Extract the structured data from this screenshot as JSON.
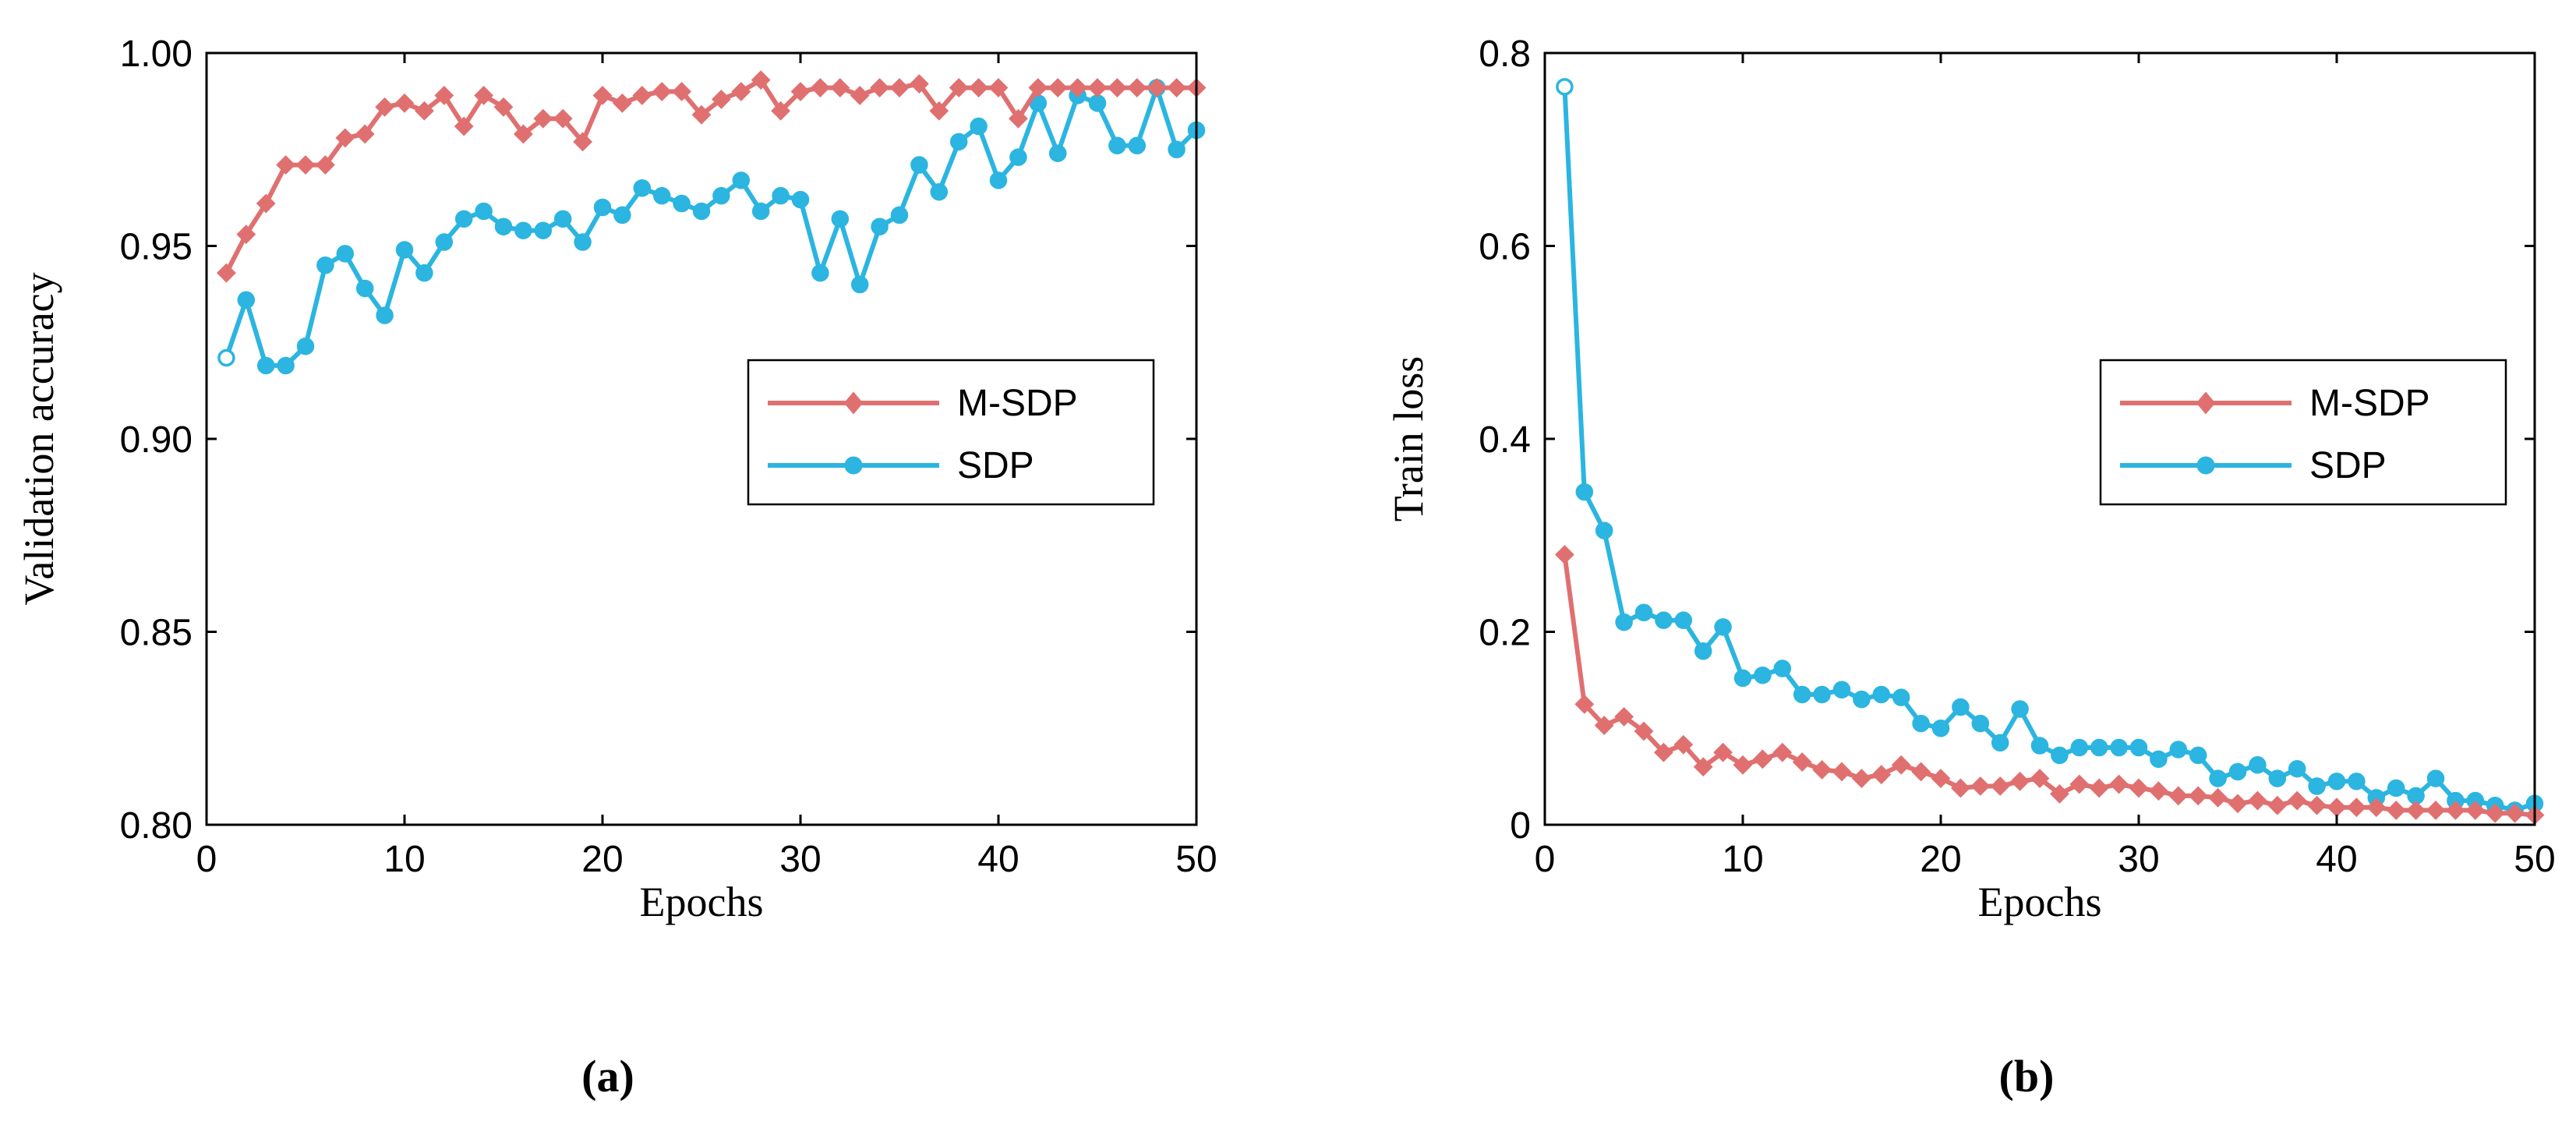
{
  "colors": {
    "m_sdp": "#E07070",
    "sdp": "#2BB5E0",
    "axis": "#000000",
    "background": "#ffffff"
  },
  "chart_data": [
    {
      "type": "line",
      "panel_label": "(a)",
      "title": "",
      "xlabel": "Epochs",
      "ylabel": "Validation accuracy",
      "xlim": [
        0,
        50
      ],
      "ylim": [
        0.8,
        1.0
      ],
      "xticks": [
        0,
        10,
        20,
        30,
        40,
        50
      ],
      "xtick_labels": [
        "0",
        "10",
        "20",
        "30",
        "40",
        "50"
      ],
      "yticks": [
        0.8,
        0.85,
        0.9,
        0.95,
        1.0
      ],
      "ytick_labels": [
        "0.80",
        "0.85",
        "0.90",
        "0.95",
        "1.00"
      ],
      "grid": false,
      "legend_position": "middle-right",
      "x": [
        1,
        2,
        3,
        4,
        5,
        6,
        7,
        8,
        9,
        10,
        11,
        12,
        13,
        14,
        15,
        16,
        17,
        18,
        19,
        20,
        21,
        22,
        23,
        24,
        25,
        26,
        27,
        28,
        29,
        30,
        31,
        32,
        33,
        34,
        35,
        36,
        37,
        38,
        39,
        40,
        41,
        42,
        43,
        44,
        45,
        46,
        47,
        48,
        49,
        50
      ],
      "series": [
        {
          "name": "M-SDP",
          "marker": "diamond",
          "color_key": "m_sdp",
          "values": [
            0.943,
            0.953,
            0.961,
            0.971,
            0.971,
            0.971,
            0.978,
            0.979,
            0.986,
            0.987,
            0.985,
            0.989,
            0.981,
            0.989,
            0.986,
            0.979,
            0.983,
            0.983,
            0.977,
            0.989,
            0.987,
            0.989,
            0.99,
            0.99,
            0.984,
            0.988,
            0.99,
            0.993,
            0.985,
            0.99,
            0.991,
            0.991,
            0.989,
            0.991,
            0.991,
            0.992,
            0.985,
            0.991,
            0.991,
            0.991,
            0.983,
            0.991,
            0.991,
            0.991,
            0.991,
            0.991,
            0.991,
            0.991,
            0.991,
            0.991
          ]
        },
        {
          "name": "SDP",
          "marker": "circle",
          "color_key": "sdp",
          "values": [
            0.921,
            0.936,
            0.919,
            0.919,
            0.924,
            0.945,
            0.948,
            0.939,
            0.932,
            0.949,
            0.943,
            0.951,
            0.957,
            0.959,
            0.955,
            0.954,
            0.954,
            0.957,
            0.951,
            0.96,
            0.958,
            0.965,
            0.963,
            0.961,
            0.959,
            0.963,
            0.967,
            0.959,
            0.963,
            0.962,
            0.943,
            0.957,
            0.94,
            0.955,
            0.958,
            0.971,
            0.964,
            0.977,
            0.981,
            0.967,
            0.973,
            0.987,
            0.974,
            0.989,
            0.987,
            0.976,
            0.976,
            0.991,
            0.975,
            0.98
          ]
        }
      ]
    },
    {
      "type": "line",
      "panel_label": "(b)",
      "title": "",
      "xlabel": "Epochs",
      "ylabel": "Train loss",
      "xlim": [
        0,
        50
      ],
      "ylim": [
        0,
        0.8
      ],
      "xticks": [
        0,
        10,
        20,
        30,
        40,
        50
      ],
      "xtick_labels": [
        "0",
        "10",
        "20",
        "30",
        "40",
        "50"
      ],
      "yticks": [
        0,
        0.2,
        0.4,
        0.6,
        0.8
      ],
      "ytick_labels": [
        "0",
        "0.2",
        "0.4",
        "0.6",
        "0.8"
      ],
      "grid": false,
      "legend_position": "middle-right",
      "x": [
        1,
        2,
        3,
        4,
        5,
        6,
        7,
        8,
        9,
        10,
        11,
        12,
        13,
        14,
        15,
        16,
        17,
        18,
        19,
        20,
        21,
        22,
        23,
        24,
        25,
        26,
        27,
        28,
        29,
        30,
        31,
        32,
        33,
        34,
        35,
        36,
        37,
        38,
        39,
        40,
        41,
        42,
        43,
        44,
        45,
        46,
        47,
        48,
        49,
        50
      ],
      "series": [
        {
          "name": "M-SDP",
          "marker": "diamond",
          "color_key": "m_sdp",
          "values": [
            0.28,
            0.125,
            0.103,
            0.112,
            0.097,
            0.075,
            0.083,
            0.06,
            0.075,
            0.062,
            0.068,
            0.075,
            0.065,
            0.057,
            0.055,
            0.048,
            0.052,
            0.062,
            0.055,
            0.048,
            0.038,
            0.04,
            0.04,
            0.045,
            0.048,
            0.032,
            0.042,
            0.038,
            0.042,
            0.038,
            0.035,
            0.03,
            0.03,
            0.028,
            0.022,
            0.025,
            0.02,
            0.025,
            0.02,
            0.018,
            0.018,
            0.018,
            0.015,
            0.015,
            0.015,
            0.015,
            0.015,
            0.012,
            0.012,
            0.01
          ]
        },
        {
          "name": "SDP",
          "marker": "circle",
          "color_key": "sdp",
          "values": [
            0.765,
            0.345,
            0.305,
            0.21,
            0.22,
            0.212,
            0.212,
            0.18,
            0.205,
            0.152,
            0.155,
            0.162,
            0.135,
            0.135,
            0.14,
            0.13,
            0.135,
            0.132,
            0.105,
            0.1,
            0.122,
            0.105,
            0.085,
            0.12,
            0.082,
            0.072,
            0.08,
            0.08,
            0.08,
            0.08,
            0.068,
            0.078,
            0.072,
            0.048,
            0.055,
            0.062,
            0.048,
            0.058,
            0.04,
            0.045,
            0.045,
            0.028,
            0.038,
            0.03,
            0.048,
            0.025,
            0.025,
            0.02,
            0.015,
            0.022
          ]
        }
      ]
    }
  ]
}
